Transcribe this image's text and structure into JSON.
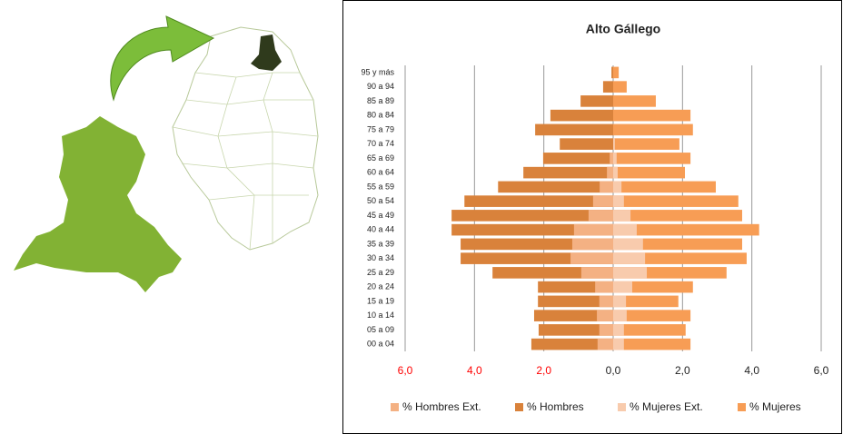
{
  "chart_data": {
    "type": "bar",
    "orientation": "horizontal",
    "title": "Alto Gállego",
    "categories": [
      "00 a 04",
      "05 a 09",
      "10 a 14",
      "15 a 19",
      "20 a 24",
      "25 a 29",
      "30 a 34",
      "35 a 39",
      "40 a 44",
      "45 a 49",
      "50 a 54",
      "55 a 59",
      "60 a 64",
      "65 a 69",
      "70 a 74",
      "75 a 79",
      "80 a 84",
      "85 a 89",
      "90 a 94",
      "95 y más"
    ],
    "series": [
      {
        "name": "% Hombres Ext.",
        "color": "#f4b183",
        "values": [
          -0.45,
          -0.4,
          -0.47,
          -0.4,
          -0.52,
          -0.92,
          -1.23,
          -1.18,
          -1.13,
          -0.71,
          -0.58,
          -0.39,
          -0.18,
          -0.1,
          0,
          0,
          0,
          0,
          0,
          0
        ]
      },
      {
        "name": "% Hombres",
        "color": "#d9823b",
        "values": [
          -2.36,
          -2.15,
          -2.28,
          -2.17,
          -2.17,
          -3.48,
          -4.4,
          -4.4,
          -4.66,
          -4.66,
          -4.29,
          -3.32,
          -2.59,
          -2.02,
          -1.54,
          -2.25,
          -1.81,
          -0.94,
          -0.29,
          -0.05
        ]
      },
      {
        "name": "% Mujeres Ext.",
        "color": "#f8cbad",
        "values": [
          0.31,
          0.31,
          0.39,
          0.37,
          0.55,
          0.97,
          0.92,
          0.86,
          0.68,
          0.5,
          0.31,
          0.24,
          0.13,
          0.1,
          0.05,
          0,
          0,
          0,
          0,
          0
        ]
      },
      {
        "name": "% Mujeres",
        "color": "#f79d55",
        "values": [
          2.23,
          2.09,
          2.23,
          1.88,
          2.3,
          3.27,
          3.85,
          3.72,
          4.21,
          3.72,
          3.61,
          2.96,
          2.07,
          2.23,
          1.91,
          2.3,
          2.23,
          1.23,
          0.39,
          0.16
        ]
      }
    ],
    "xlim": [
      -6,
      6
    ],
    "xticks": [
      {
        "value": -6,
        "label": "6,0"
      },
      {
        "value": -4,
        "label": "4,0"
      },
      {
        "value": -2,
        "label": "2,0"
      },
      {
        "value": 0,
        "label": "0,0"
      },
      {
        "value": 2,
        "label": "2,0"
      },
      {
        "value": 4,
        "label": "4,0"
      },
      {
        "value": 6,
        "label": "6,0"
      }
    ],
    "negative_tick_color": "#ff0000",
    "grid": true
  }
}
